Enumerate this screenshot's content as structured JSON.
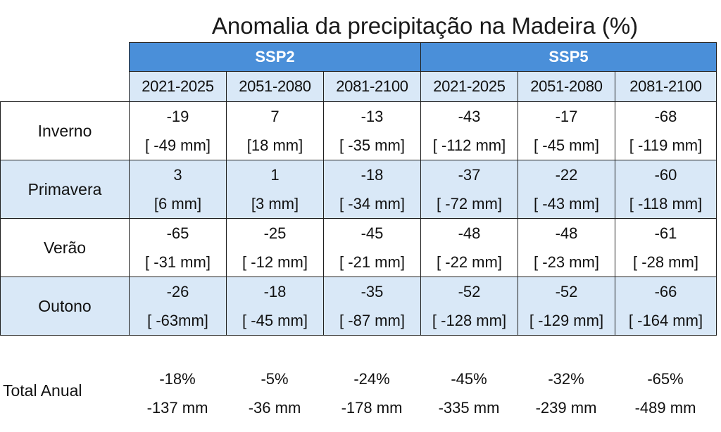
{
  "title": "Anomalia da precipitação na Madeira (%)",
  "scenarios": [
    "SSP2",
    "SSP5"
  ],
  "periods": [
    "2021-2025",
    "2051-2080",
    "2081-2100",
    "2021-2025",
    "2051-2080",
    "2081-2100"
  ],
  "colors": {
    "header_blue": "#4a8fd9",
    "light_blue": "#d9e8f7"
  },
  "chart_data": {
    "type": "table",
    "title": "Anomalia da precipitação na Madeira (%)",
    "column_groups": [
      {
        "name": "SSP2",
        "periods": [
          "2021-2025",
          "2051-2080",
          "2081-2100"
        ]
      },
      {
        "name": "SSP5",
        "periods": [
          "2021-2025",
          "2051-2080",
          "2081-2100"
        ]
      }
    ],
    "rows": [
      {
        "label": "Inverno",
        "values": [
          "-19",
          "7",
          "-13",
          "-43",
          "-17",
          "-68"
        ],
        "mm": [
          "[ -49 mm]",
          "[18 mm]",
          "[ -35 mm]",
          "[ -112 mm]",
          "[ -45 mm]",
          "[ -119 mm]"
        ]
      },
      {
        "label": "Primavera",
        "values": [
          "3",
          "1",
          "-18",
          "-37",
          "-22",
          "-60"
        ],
        "mm": [
          "[6 mm]",
          "[3 mm]",
          "[ -34 mm]",
          "[ -72 mm]",
          "[ -43 mm]",
          "[ -118 mm]"
        ]
      },
      {
        "label": "Verão",
        "values": [
          "-65",
          "-25",
          "-45",
          "-48",
          "-48",
          "-61"
        ],
        "mm": [
          "[ -31 mm]",
          "[ -12 mm]",
          "[ -21 mm]",
          "[ -22 mm]",
          "[ -23 mm]",
          "[ -28 mm]"
        ]
      },
      {
        "label": "Outono",
        "values": [
          "-26",
          "-18",
          "-35",
          "-52",
          "-52",
          "-66"
        ],
        "mm": [
          "[ -63mm]",
          "[ -45 mm]",
          "[ -87 mm]",
          "[ -128 mm]",
          "[ -129 mm]",
          "[ -164 mm]"
        ]
      }
    ],
    "annual": {
      "label": "Total Anual",
      "percent": [
        "-18%",
        "-5%",
        "-24%",
        "-45%",
        "-32%",
        "-65%"
      ],
      "mm": [
        "-137 mm",
        "-36 mm",
        "-178 mm",
        "-335 mm",
        "-239 mm",
        "-489 mm"
      ]
    }
  }
}
